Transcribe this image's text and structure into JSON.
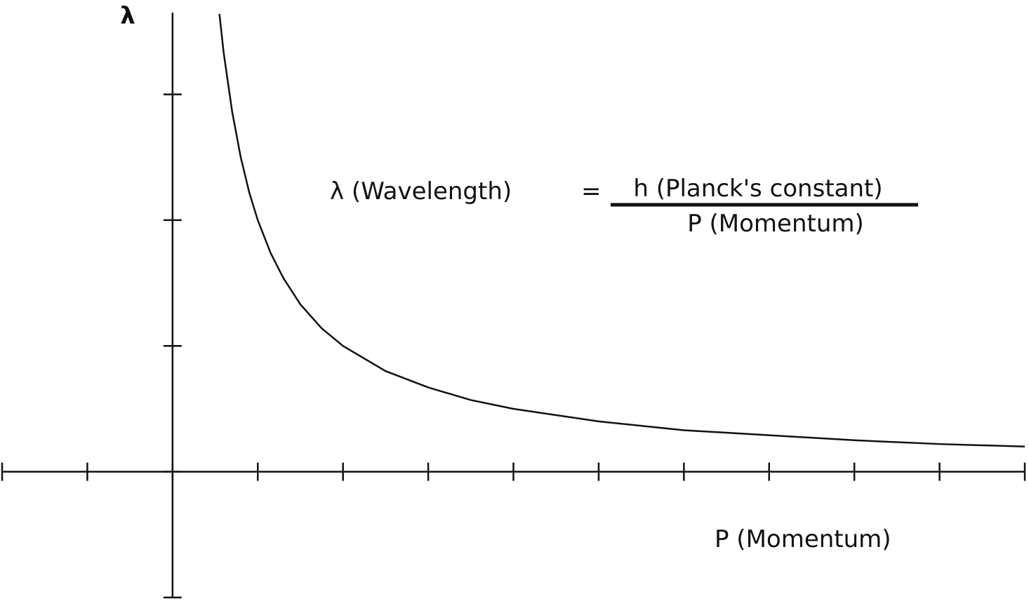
{
  "chart_data": {
    "type": "line",
    "x_label": "P (Momentum)",
    "y_label": "λ",
    "annotation": {
      "lhs": "λ (Wavelength)",
      "equals": "=",
      "numerator": "h (Planck's constant)",
      "denominator": "P (Momentum)"
    },
    "x": [
      0.55,
      0.6,
      0.7,
      0.8,
      0.9,
      1,
      1.15,
      1.3,
      1.5,
      1.75,
      2,
      2.5,
      3,
      3.5,
      4,
      5,
      6,
      7,
      8,
      9,
      10
    ],
    "series": [
      {
        "color": "#111111",
        "values": [
          3.64,
          3.33,
          2.86,
          2.5,
          2.22,
          2,
          1.74,
          1.54,
          1.33,
          1.14,
          1,
          0.8,
          0.67,
          0.57,
          0.5,
          0.4,
          0.33,
          0.29,
          0.25,
          0.22,
          0.2
        ]
      }
    ],
    "xlim": [
      -2,
      10
    ],
    "ylim": [
      -1,
      3.65
    ],
    "xticks": [
      -2,
      -1,
      0,
      1,
      2,
      3,
      4,
      5,
      6,
      7,
      8,
      9,
      10
    ],
    "yticks": [
      -1,
      0,
      1,
      2,
      3
    ],
    "grid": false
  }
}
